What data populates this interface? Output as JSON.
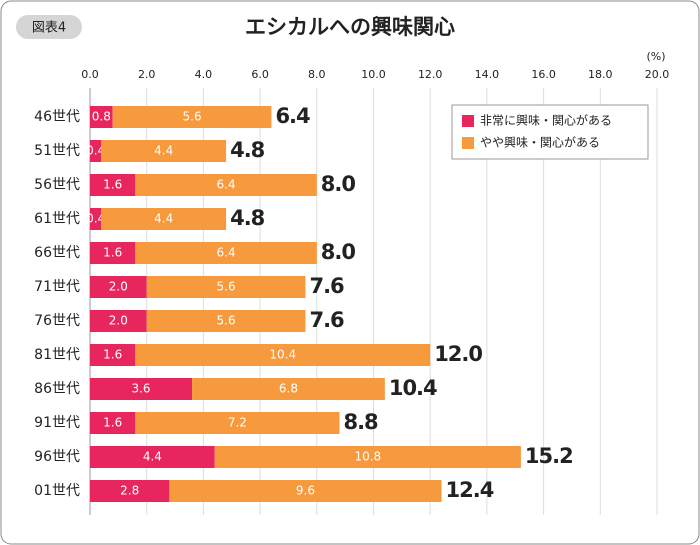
{
  "chart_data": {
    "type": "stacked-bar-horizontal",
    "badge": "図表4",
    "title": "エシカルへの興味関心",
    "unit_label": "(%)",
    "categories": [
      "46世代",
      "51世代",
      "56世代",
      "61世代",
      "66世代",
      "71世代",
      "76世代",
      "81世代",
      "86世代",
      "91世代",
      "96世代",
      "01世代"
    ],
    "series": [
      {
        "name": "非常に興味・関心がある",
        "color": "#e8265e",
        "values": [
          0.8,
          0.4,
          1.6,
          0.4,
          1.6,
          2.0,
          2.0,
          1.6,
          3.6,
          1.6,
          4.4,
          2.8
        ],
        "value_labels": [
          "0.8",
          "0.4",
          "1.6",
          "0.4",
          "1.6",
          "2.0",
          "2.0",
          "1.6",
          "3.6",
          "1.6",
          "4.4",
          "2.8"
        ]
      },
      {
        "name": "やや興味・関心がある",
        "color": "#f79a3e",
        "values": [
          5.6,
          4.4,
          6.4,
          4.4,
          6.4,
          5.6,
          5.6,
          10.4,
          6.8,
          7.2,
          10.8,
          9.6
        ],
        "value_labels": [
          "5.6",
          "4.4",
          "6.4",
          "4.4",
          "6.4",
          "5.6",
          "5.6",
          "10.4",
          "6.8",
          "7.2",
          "10.8",
          "9.6"
        ]
      }
    ],
    "total_labels": [
      "6.4",
      "4.8",
      "8.0",
      "4.8",
      "8.0",
      "7.6",
      "7.6",
      "12.0",
      "10.4",
      "8.8",
      "15.2",
      "12.4"
    ],
    "xlim": [
      0,
      20
    ],
    "xticks": [
      {
        "value": 0,
        "label": "0.0"
      },
      {
        "value": 2,
        "label": "2.0"
      },
      {
        "value": 4,
        "label": "4.0"
      },
      {
        "value": 6,
        "label": "6.0"
      },
      {
        "value": 8,
        "label": "8.0"
      },
      {
        "value": 10,
        "label": "10.0"
      },
      {
        "value": 12,
        "label": "12.0"
      },
      {
        "value": 14,
        "label": "14.0"
      },
      {
        "value": 16,
        "label": "16.0"
      },
      {
        "value": 18,
        "label": "18.0"
      },
      {
        "value": 20,
        "label": "20.0"
      }
    ],
    "grid": true
  }
}
